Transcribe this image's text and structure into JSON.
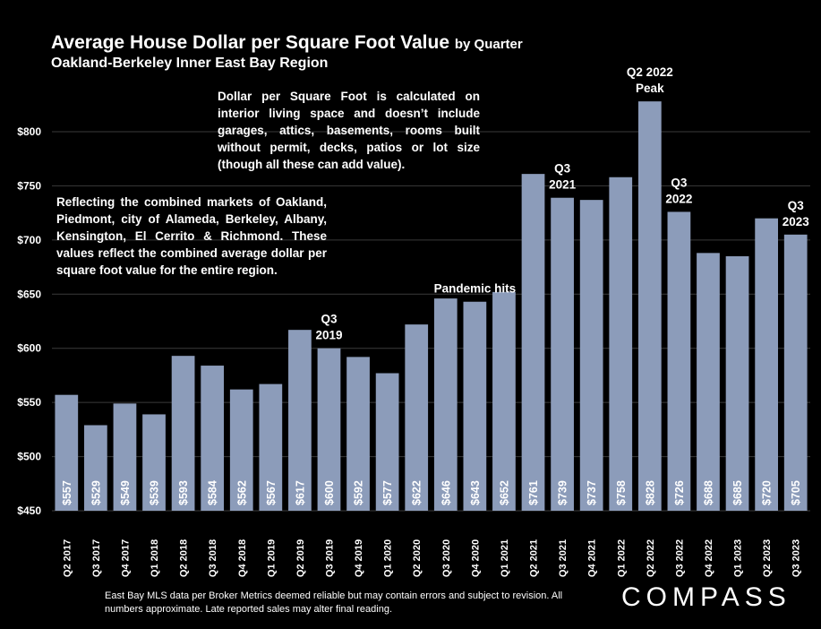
{
  "header": {
    "title": "Average House Dollar per Square Foot Value",
    "title_suffix": "by Quarter",
    "subtitle": "Oakland-Berkeley Inner East Bay Region"
  },
  "notes": {
    "right": "Dollar per Square Foot is calculated on interior living space and doesn’t include garages, attics, basements, rooms built without permit, decks, patios or lot size (though all these can add value).",
    "left": "Reflecting the combined markets of Oakland, Piedmont, city of Alameda, Berkeley, Albany, Kensington, El Cerrito & Richmond. These values reflect the combined average dollar per square foot value for the entire region."
  },
  "footer": {
    "disclaimer": "East Bay MLS data per Broker Metrics deemed reliable but may contain errors and subject to revision. All numbers approximate. Late reported sales may alter final reading.",
    "logo": "COMPASS"
  },
  "colors": {
    "bar": "#8c9cba",
    "background": "#000000",
    "grid": "#3a3a3a",
    "text": "#ffffff"
  },
  "chart_data": {
    "type": "bar",
    "title": "Average House Dollar per Square Foot Value by Quarter",
    "subtitle": "Oakland-Berkeley Inner East Bay Region",
    "categories": [
      "Q2 2017",
      "Q3 2017",
      "Q4 2017",
      "Q1 2018",
      "Q2 2018",
      "Q3 2018",
      "Q4 2018",
      "Q1 2019",
      "Q2 2019",
      "Q3 2019",
      "Q4 2019",
      "Q1 2020",
      "Q2 2020",
      "Q3 2020",
      "Q4 2020",
      "Q1 2021",
      "Q2 2021",
      "Q3 2021",
      "Q4 2021",
      "Q1 2022",
      "Q2 2022",
      "Q3 2022",
      "Q4 2022",
      "Q1 2023",
      "Q2 2023",
      "Q3 2023"
    ],
    "values": [
      557,
      529,
      549,
      539,
      593,
      584,
      562,
      567,
      617,
      600,
      592,
      577,
      622,
      646,
      643,
      652,
      761,
      739,
      737,
      758,
      828,
      726,
      688,
      685,
      720,
      705
    ],
    "value_labels": [
      "$557",
      "$529",
      "$549",
      "$539",
      "$593",
      "$584",
      "$562",
      "$567",
      "$617",
      "$600",
      "$592",
      "$577",
      "$622",
      "$646",
      "$643",
      "$652",
      "$761",
      "$739",
      "$737",
      "$758",
      "$828",
      "$726",
      "$688",
      "$685",
      "$720",
      "$705"
    ],
    "ylim": [
      450,
      800
    ],
    "yticks": [
      450,
      500,
      550,
      600,
      650,
      700,
      750,
      800
    ],
    "ytick_labels": [
      "$450",
      "$500",
      "$550",
      "$600",
      "$650",
      "$700",
      "$750",
      "$800"
    ],
    "grid": true,
    "annotations": [
      {
        "index": 9,
        "lines": [
          "Q3",
          "2019"
        ]
      },
      {
        "index": 14,
        "lines": [
          "Pandemic hits"
        ]
      },
      {
        "index": 17,
        "lines": [
          "Q3",
          "2021"
        ]
      },
      {
        "index": 20,
        "lines": [
          "Q2 2022",
          "Peak"
        ]
      },
      {
        "index": 21,
        "lines": [
          "Q3",
          "2022"
        ]
      },
      {
        "index": 25,
        "lines": [
          "Q3",
          "2023"
        ]
      }
    ]
  }
}
